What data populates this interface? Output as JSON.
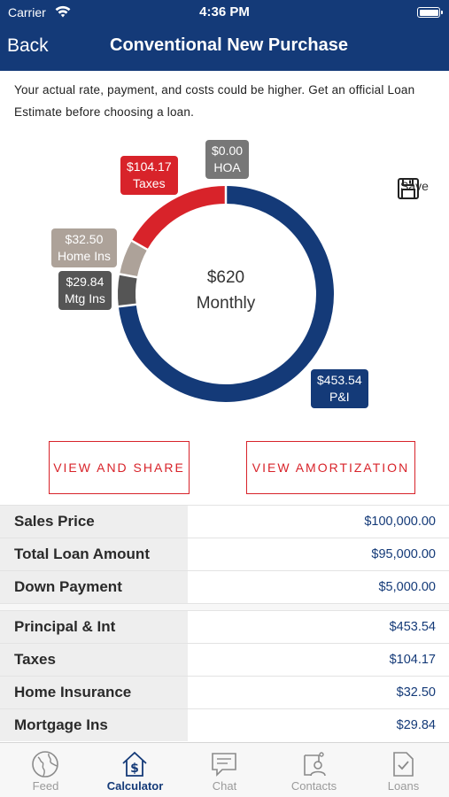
{
  "status_bar": {
    "carrier": "Carrier",
    "time": "4:36 PM"
  },
  "nav": {
    "back_label": "Back",
    "title": "Conventional New Purchase"
  },
  "disclaimer": "Your actual rate, payment, and costs could be higher. Get an official Loan Estimate before choosing a loan.",
  "chart": {
    "center_amount": "$620",
    "center_label": "Monthly",
    "segments": [
      {
        "amount": "$453.54",
        "label": "P&I",
        "value": 453.54,
        "color": "#143a78"
      },
      {
        "amount": "$29.84",
        "label": "Mtg Ins",
        "value": 29.84,
        "color": "#555555"
      },
      {
        "amount": "$32.50",
        "label": "Home Ins",
        "value": 32.5,
        "color": "#ada299"
      },
      {
        "amount": "$104.17",
        "label": "Taxes",
        "value": 104.17,
        "color": "#d8232a"
      },
      {
        "amount": "$0.00",
        "label": "HOA",
        "value": 0,
        "color": "#777777"
      }
    ]
  },
  "save_label": "Save",
  "buttons": {
    "view_and_share": "VIEW AND SHARE",
    "view_amortization": "VIEW AMORTIZATION"
  },
  "loan_summary": [
    {
      "label": "Sales Price",
      "value": "$100,000.00"
    },
    {
      "label": "Total Loan Amount",
      "value": "$95,000.00"
    },
    {
      "label": "Down Payment",
      "value": "$5,000.00"
    }
  ],
  "payment_breakdown": [
    {
      "label": "Principal & Int",
      "value": "$453.54"
    },
    {
      "label": "Taxes",
      "value": "$104.17"
    },
    {
      "label": "Home Insurance",
      "value": "$32.50"
    },
    {
      "label": "Mortgage Ins",
      "value": "$29.84"
    }
  ],
  "tabs": [
    {
      "label": "Feed",
      "icon": "globe-icon"
    },
    {
      "label": "Calculator",
      "icon": "house-dollar-icon",
      "active": true
    },
    {
      "label": "Chat",
      "icon": "chat-icon"
    },
    {
      "label": "Contacts",
      "icon": "contacts-icon"
    },
    {
      "label": "Loans",
      "icon": "document-check-icon"
    }
  ],
  "colors": {
    "brand": "#143a78",
    "accent": "#d8232a"
  }
}
